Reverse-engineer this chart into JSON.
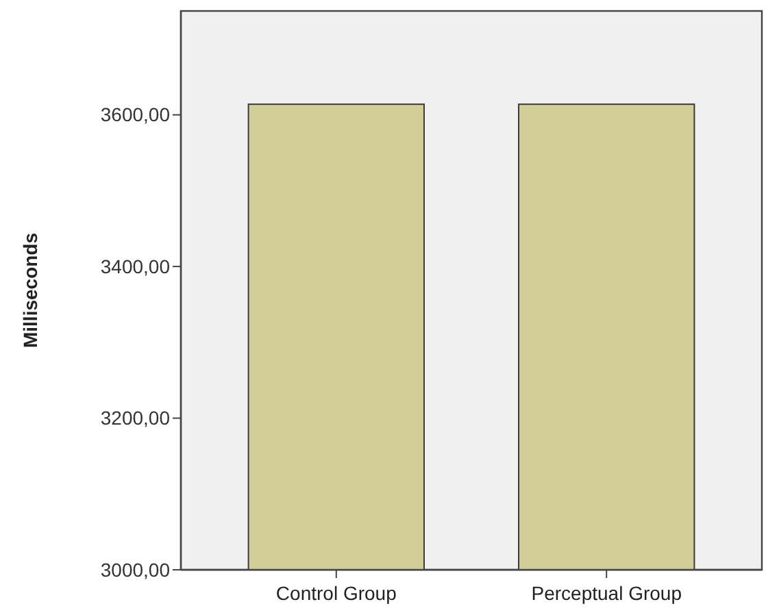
{
  "chart_data": {
    "type": "bar",
    "ylabel": "Milliseconds",
    "categories": [
      "Control Group",
      "Perceptual Group"
    ],
    "values": [
      3614,
      3614
    ],
    "color": "#d3ce97",
    "ylim": [
      3000,
      3737
    ],
    "yticks": [
      {
        "value": 3000,
        "label": "3000,00"
      },
      {
        "value": 3200,
        "label": "3200,00"
      },
      {
        "value": 3400,
        "label": "3400,00"
      },
      {
        "value": 3600,
        "label": "3600,00"
      }
    ],
    "grid": false
  }
}
